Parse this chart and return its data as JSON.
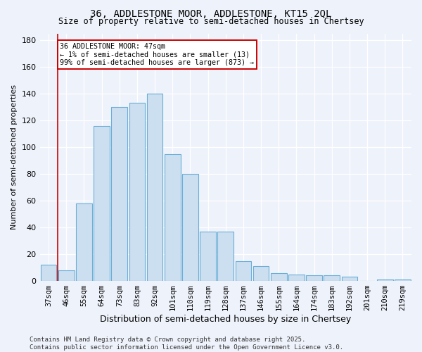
{
  "title1": "36, ADDLESTONE MOOR, ADDLESTONE, KT15 2QL",
  "title2": "Size of property relative to semi-detached houses in Chertsey",
  "xlabel": "Distribution of semi-detached houses by size in Chertsey",
  "ylabel": "Number of semi-detached properties",
  "categories": [
    "37sqm",
    "46sqm",
    "55sqm",
    "64sqm",
    "73sqm",
    "83sqm",
    "92sqm",
    "101sqm",
    "110sqm",
    "119sqm",
    "128sqm",
    "137sqm",
    "146sqm",
    "155sqm",
    "164sqm",
    "174sqm",
    "183sqm",
    "192sqm",
    "201sqm",
    "210sqm",
    "219sqm"
  ],
  "values": [
    12,
    8,
    58,
    116,
    130,
    133,
    140,
    95,
    80,
    37,
    37,
    15,
    11,
    6,
    5,
    4,
    4,
    3,
    0,
    1,
    1
  ],
  "bar_color": "#ccdff0",
  "bar_edge_color": "#6aaed6",
  "annotation_text": "36 ADDLESTONE MOOR: 47sqm\n← 1% of semi-detached houses are smaller (13)\n99% of semi-detached houses are larger (873) →",
  "annotation_box_facecolor": "#ffffff",
  "annotation_border_color": "#cc0000",
  "vline_color": "#cc0000",
  "vline_x": 0.5,
  "ylim": [
    0,
    185
  ],
  "yticks": [
    0,
    20,
    40,
    60,
    80,
    100,
    120,
    140,
    160,
    180
  ],
  "bg_color": "#eef2fb",
  "grid_color": "#ffffff",
  "footer": "Contains HM Land Registry data © Crown copyright and database right 2025.\nContains public sector information licensed under the Open Government Licence v3.0."
}
